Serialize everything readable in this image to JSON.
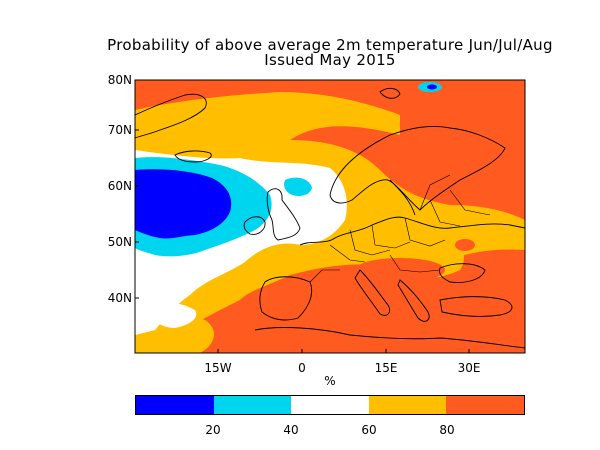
{
  "title_line1": "Probability of above average 2m temperature Jun/Jul/Aug",
  "title_line2": "Issued May 2015",
  "lat_labels": [
    "80N",
    "70N",
    "60N",
    "50N",
    "40N"
  ],
  "lon_labels": [
    "15W",
    "0",
    "15E",
    "30E"
  ],
  "units_label": "%",
  "colorbar": {
    "colors": [
      "#0000ff",
      "#00d5f0",
      "#ffffff",
      "#ffbf00",
      "#ff5a1f"
    ],
    "labels": [
      "20",
      "40",
      "60",
      "80"
    ]
  },
  "legend_colors": {
    "land_lines": "#000000"
  }
}
